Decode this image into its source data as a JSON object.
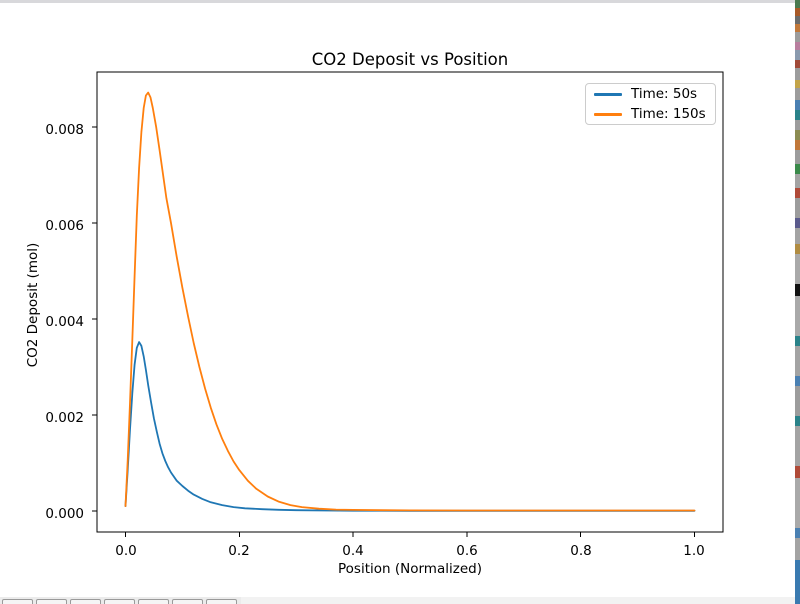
{
  "window": {
    "top_edge_color": "#d8d8db",
    "toolbar": {
      "background": "#f0f0f0",
      "buttons": [
        "home",
        "back",
        "forward",
        "pan",
        "zoom",
        "subplots",
        "save"
      ]
    },
    "background_strip_segments": [
      [
        8,
        "#49794f"
      ],
      [
        8,
        "#a85a28"
      ],
      [
        8,
        "#6b6b6b"
      ],
      [
        8,
        "#c1783a"
      ],
      [
        10,
        "#9c9c9c"
      ],
      [
        8,
        "#b87e9e"
      ],
      [
        10,
        "#8a9aae"
      ],
      [
        8,
        "#a04a38"
      ],
      [
        12,
        "#9c9c9c"
      ],
      [
        8,
        "#c3a449"
      ],
      [
        12,
        "#9c9c9c"
      ],
      [
        10,
        "#4a80b2"
      ],
      [
        10,
        "#2a8289"
      ],
      [
        10,
        "#9c9c9c"
      ],
      [
        10,
        "#8c8c52"
      ],
      [
        10,
        "#c1783a"
      ],
      [
        14,
        "#9c9c9c"
      ],
      [
        10,
        "#3a8a4a"
      ],
      [
        14,
        "#a3a3a3"
      ],
      [
        10,
        "#b04a38"
      ],
      [
        20,
        "#9c9c9c"
      ],
      [
        10,
        "#5a5a8c"
      ],
      [
        16,
        "#a3a3a3"
      ],
      [
        10,
        "#b08c42"
      ],
      [
        30,
        "#a9a9a9"
      ],
      [
        12,
        "#111111"
      ],
      [
        40,
        "#a9a9a9"
      ],
      [
        10,
        "#2a8289"
      ],
      [
        30,
        "#a3a3a3"
      ],
      [
        10,
        "#4a80b2"
      ],
      [
        30,
        "#9c9c9c"
      ],
      [
        10,
        "#2a8289"
      ],
      [
        40,
        "#a3a3a3"
      ],
      [
        12,
        "#b04a38"
      ],
      [
        50,
        "#a9a9a9"
      ],
      [
        10,
        "#4a80b2"
      ],
      [
        22,
        "#a3a3a3"
      ],
      [
        44,
        "#3a7ab0"
      ]
    ]
  },
  "chart_data": {
    "type": "line",
    "title": "CO2 Deposit vs Position",
    "xlabel": "Position (Normalized)",
    "ylabel": "CO2 Deposit (mol)",
    "xlim": [
      -0.05,
      1.05
    ],
    "ylim": [
      -0.00044,
      0.00915
    ],
    "xticks": [
      0.0,
      0.2,
      0.4,
      0.6,
      0.8,
      1.0
    ],
    "xtick_labels": [
      "0.0",
      "0.2",
      "0.4",
      "0.6",
      "0.8",
      "1.0"
    ],
    "yticks": [
      0.0,
      0.002,
      0.004,
      0.006,
      0.008
    ],
    "ytick_labels": [
      "0.000",
      "0.002",
      "0.004",
      "0.006",
      "0.008"
    ],
    "grid": false,
    "legend": {
      "position": "upper right",
      "entries": [
        "Time: 50s",
        "Time: 150s"
      ]
    },
    "series": [
      {
        "name": "Time: 50s",
        "color": "#1f77b4",
        "points": [
          [
            0,
            0.0001
          ],
          [
            0.004,
            0.00085
          ],
          [
            0.008,
            0.0017
          ],
          [
            0.012,
            0.00245
          ],
          [
            0.016,
            0.00305
          ],
          [
            0.02,
            0.0034
          ],
          [
            0.024,
            0.00352
          ],
          [
            0.028,
            0.00344
          ],
          [
            0.032,
            0.00322
          ],
          [
            0.036,
            0.00294
          ],
          [
            0.04,
            0.00262
          ],
          [
            0.045,
            0.00226
          ],
          [
            0.05,
            0.00193
          ],
          [
            0.055,
            0.00165
          ],
          [
            0.06,
            0.0014
          ],
          [
            0.065,
            0.0012
          ],
          [
            0.07,
            0.00104
          ],
          [
            0.075,
            0.00091
          ],
          [
            0.08,
            0.0008
          ],
          [
            0.09,
            0.00063
          ],
          [
            0.1,
            0.00052
          ],
          [
            0.11,
            0.00042
          ],
          [
            0.12,
            0.00034
          ],
          [
            0.135,
            0.00025
          ],
          [
            0.15,
            0.00018
          ],
          [
            0.17,
            0.00012
          ],
          [
            0.19,
            8e-05
          ],
          [
            0.21,
            5.5e-05
          ],
          [
            0.24,
            3.5e-05
          ],
          [
            0.27,
            2.2e-05
          ],
          [
            0.3,
            1.4e-05
          ],
          [
            0.35,
            8e-06
          ],
          [
            0.4,
            5e-06
          ],
          [
            0.5,
            3e-06
          ],
          [
            0.6,
            2e-06
          ],
          [
            0.8,
            2e-06
          ],
          [
            1,
            2e-06
          ]
        ]
      },
      {
        "name": "Time: 150s",
        "color": "#ff7f0e",
        "points": [
          [
            0,
            0.0001
          ],
          [
            0.004,
            0.00105
          ],
          [
            0.008,
            0.00225
          ],
          [
            0.012,
            0.00355
          ],
          [
            0.016,
            0.0049
          ],
          [
            0.02,
            0.00615
          ],
          [
            0.024,
            0.00715
          ],
          [
            0.028,
            0.0079
          ],
          [
            0.032,
            0.0084
          ],
          [
            0.036,
            0.00866
          ],
          [
            0.04,
            0.00872
          ],
          [
            0.044,
            0.00862
          ],
          [
            0.048,
            0.0084
          ],
          [
            0.054,
            0.008
          ],
          [
            0.06,
            0.00752
          ],
          [
            0.066,
            0.00702
          ],
          [
            0.072,
            0.00652
          ],
          [
            0.08,
            0.006
          ],
          [
            0.09,
            0.0053
          ],
          [
            0.1,
            0.00465
          ],
          [
            0.11,
            0.00405
          ],
          [
            0.12,
            0.0035
          ],
          [
            0.13,
            0.003
          ],
          [
            0.14,
            0.00255
          ],
          [
            0.15,
            0.00215
          ],
          [
            0.16,
            0.0018
          ],
          [
            0.17,
            0.0015
          ],
          [
            0.18,
            0.00125
          ],
          [
            0.19,
            0.00103
          ],
          [
            0.2,
            0.00085
          ],
          [
            0.215,
            0.00063
          ],
          [
            0.23,
            0.00046
          ],
          [
            0.25,
            0.0003
          ],
          [
            0.27,
            0.00019
          ],
          [
            0.29,
            0.00012
          ],
          [
            0.31,
            8e-05
          ],
          [
            0.34,
            4.5e-05
          ],
          [
            0.37,
            2.8e-05
          ],
          [
            0.4,
            2e-05
          ],
          [
            0.45,
            1.4e-05
          ],
          [
            0.5,
            1.1e-05
          ],
          [
            0.6,
            9e-06
          ],
          [
            0.8,
            8e-06
          ],
          [
            1,
            8e-06
          ]
        ]
      }
    ]
  }
}
